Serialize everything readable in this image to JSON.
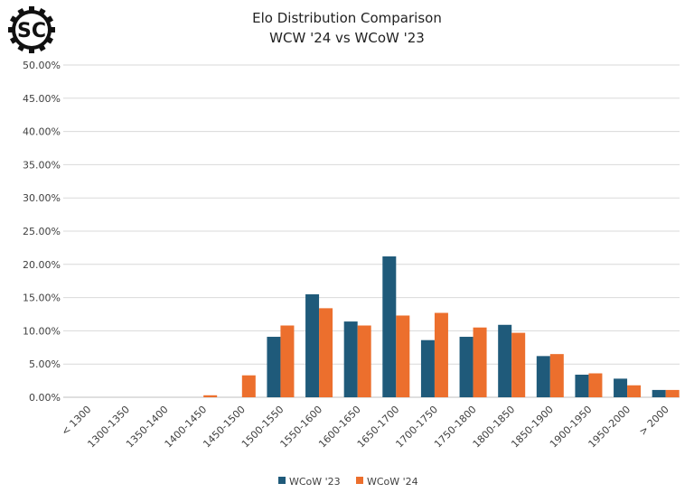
{
  "logo": {
    "text": "SC"
  },
  "chart_data": {
    "type": "bar",
    "title": "Elo Distribution Comparison",
    "subtitle": "WCW '24 vs WCoW '23",
    "xlabel": "",
    "ylabel": "",
    "ylim": [
      0,
      50
    ],
    "yticks": [
      "0.00%",
      "5.00%",
      "10.00%",
      "15.00%",
      "20.00%",
      "25.00%",
      "30.00%",
      "35.00%",
      "40.00%",
      "45.00%",
      "50.00%"
    ],
    "categories": [
      "< 1300",
      "1300-1350",
      "1350-1400",
      "1400-1450",
      "1450-1500",
      "1500-1550",
      "1550-1600",
      "1600-1650",
      "1650-1700",
      "1700-1750",
      "1750-1800",
      "1800-1850",
      "1850-1900",
      "1900-1950",
      "1950-2000",
      "> 2000"
    ],
    "series": [
      {
        "name": "WCoW '23",
        "color": "#1f5a7a",
        "values": [
          0,
          0,
          0,
          0,
          0,
          9.1,
          15.5,
          11.4,
          21.2,
          8.6,
          9.1,
          10.9,
          6.2,
          3.4,
          2.8,
          1.1
        ]
      },
      {
        "name": "WCoW '24",
        "color": "#ec6f2d",
        "values": [
          0,
          0,
          0,
          0.3,
          3.3,
          10.8,
          13.4,
          10.8,
          12.3,
          12.7,
          10.5,
          9.7,
          6.5,
          3.6,
          1.8,
          1.1
        ]
      }
    ],
    "grid": true,
    "legend": "bottom-center"
  }
}
